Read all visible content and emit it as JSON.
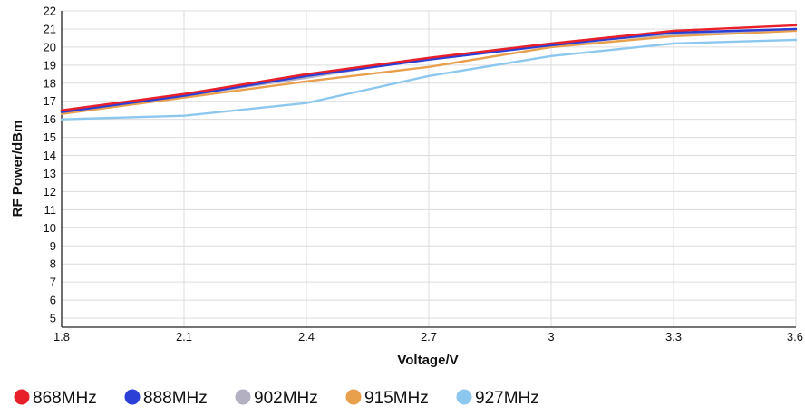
{
  "chart_data": {
    "type": "line",
    "xlabel": "Voltage/V",
    "ylabel": "RF Power/dBm",
    "xlim": [
      1.8,
      3.6
    ],
    "ylim": [
      4.5,
      22
    ],
    "x": [
      1.8,
      2.1,
      2.4,
      2.7,
      3.0,
      3.3,
      3.6
    ],
    "x_tick_labels": [
      "1.8",
      "2.1",
      "2.4",
      "2.7",
      "3",
      "3.3",
      "3.6"
    ],
    "y_ticks": [
      5,
      6,
      7,
      8,
      9,
      10,
      11,
      12,
      13,
      14,
      15,
      16,
      17,
      18,
      19,
      20,
      21,
      22
    ],
    "grid": true,
    "legend_position": "bottom-left",
    "series": [
      {
        "name": "868MHz",
        "color": "#e8202a",
        "values": [
          16.5,
          17.4,
          18.5,
          19.4,
          20.2,
          20.9,
          21.2
        ]
      },
      {
        "name": "888MHz",
        "color": "#2b3fd6",
        "values": [
          16.4,
          17.3,
          18.4,
          19.3,
          20.1,
          20.8,
          21.0
        ]
      },
      {
        "name": "902MHz",
        "color": "#b3b0c2",
        "values": [
          16.4,
          17.3,
          18.3,
          19.4,
          20.2,
          20.7,
          21.0
        ]
      },
      {
        "name": "915MHz",
        "color": "#e8a04c",
        "values": [
          16.3,
          17.2,
          18.1,
          18.9,
          20.0,
          20.6,
          20.9
        ]
      },
      {
        "name": "927MHz",
        "color": "#8cc8ee",
        "values": [
          16.0,
          16.2,
          16.9,
          18.4,
          19.5,
          20.2,
          20.4
        ]
      }
    ]
  }
}
